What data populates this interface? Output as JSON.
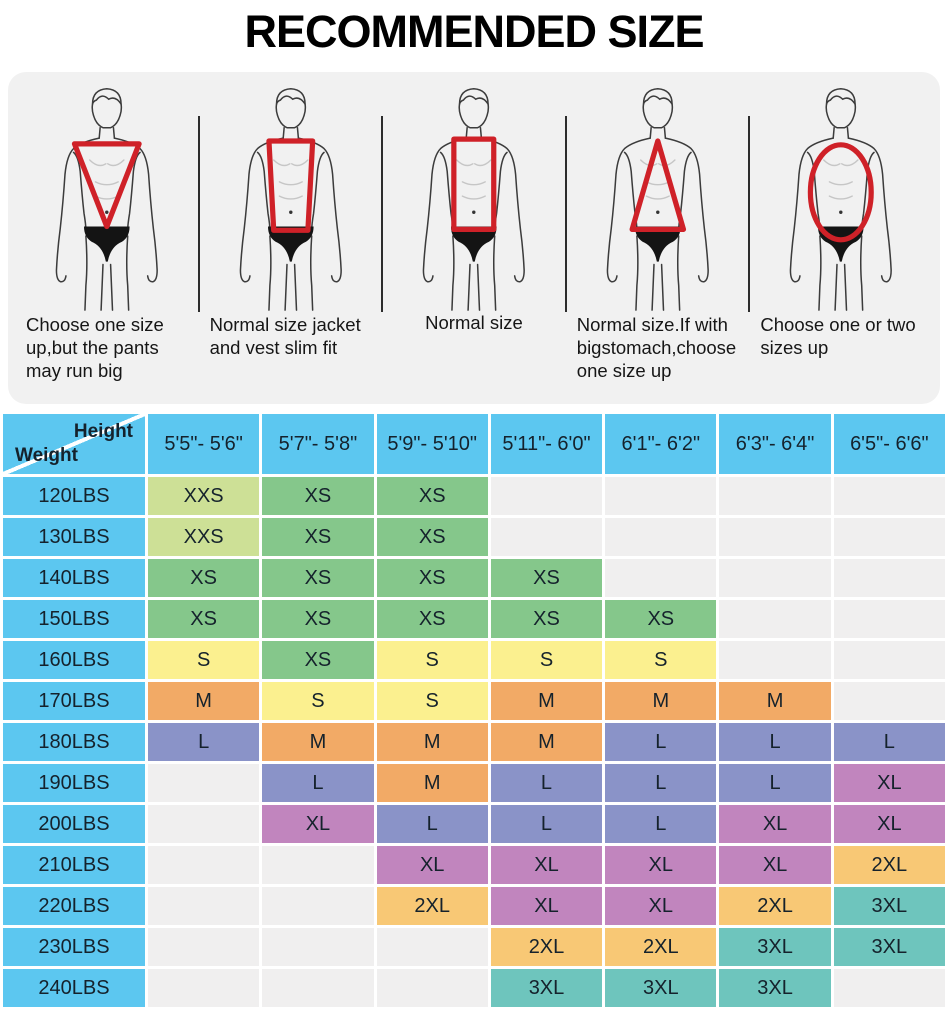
{
  "chart_data": {
    "type": "table",
    "title": "RECOMMENDED SIZE",
    "col_header": "Height",
    "row_header": "Weight",
    "columns": [
      "5'5\"- 5'6\"",
      "5'7\"- 5'8\"",
      "5'9\"- 5'10\"",
      "5'11\"- 6'0\"",
      "6'1\"- 6'2\"",
      "6'3\"- 6'4\"",
      "6'5\"- 6'6\""
    ],
    "rows": [
      {
        "weight": "120LBS",
        "sizes": [
          "XXS",
          "XS",
          "XS",
          "",
          "",
          "",
          ""
        ]
      },
      {
        "weight": "130LBS",
        "sizes": [
          "XXS",
          "XS",
          "XS",
          "",
          "",
          "",
          ""
        ]
      },
      {
        "weight": "140LBS",
        "sizes": [
          "XS",
          "XS",
          "XS",
          "XS",
          "",
          "",
          ""
        ]
      },
      {
        "weight": "150LBS",
        "sizes": [
          "XS",
          "XS",
          "XS",
          "XS",
          "XS",
          "",
          ""
        ]
      },
      {
        "weight": "160LBS",
        "sizes": [
          "S",
          "XS",
          "S",
          "S",
          "S",
          "",
          ""
        ]
      },
      {
        "weight": "170LBS",
        "sizes": [
          "M",
          "S",
          "S",
          "M",
          "M",
          "M",
          ""
        ]
      },
      {
        "weight": "180LBS",
        "sizes": [
          "L",
          "M",
          "M",
          "M",
          "L",
          "L",
          "L"
        ]
      },
      {
        "weight": "190LBS",
        "sizes": [
          "",
          "L",
          "M",
          "L",
          "L",
          "L",
          "XL"
        ]
      },
      {
        "weight": "200LBS",
        "sizes": [
          "",
          "XL",
          "L",
          "L",
          "L",
          "XL",
          "XL"
        ]
      },
      {
        "weight": "210LBS",
        "sizes": [
          "",
          "",
          "XL",
          "XL",
          "XL",
          "XL",
          "2XL"
        ]
      },
      {
        "weight": "220LBS",
        "sizes": [
          "",
          "",
          "2XL",
          "XL",
          "XL",
          "2XL",
          "3XL"
        ]
      },
      {
        "weight": "230LBS",
        "sizes": [
          "",
          "",
          "",
          "2XL",
          "2XL",
          "3XL",
          "3XL"
        ]
      },
      {
        "weight": "240LBS",
        "sizes": [
          "",
          "",
          "",
          "3XL",
          "3XL",
          "3XL",
          ""
        ]
      }
    ]
  },
  "body_types": {
    "figures": [
      {
        "shape": "inverted-triangle",
        "caption": "Choose one size up,but the pants may run big"
      },
      {
        "shape": "trapezoid",
        "caption": "Normal size jacket and vest slim fit"
      },
      {
        "shape": "rectangle",
        "caption": "Normal size"
      },
      {
        "shape": "triangle",
        "caption": "Normal size.If with bigstomach,choose one size up"
      },
      {
        "shape": "oval",
        "caption": "Choose one or two sizes up"
      }
    ]
  },
  "colors": {
    "header_blue": "#5cc7f0",
    "empty_cell": "#f0efef",
    "panel_bg": "#f1f1f1",
    "accent_red": "#cf2128",
    "text_dark": "#15222c",
    "size_colors": {
      "XXS": "#cde096",
      "XS": "#85c78b",
      "S": "#fbf08f",
      "M": "#f2aa66",
      "L": "#8a93c8",
      "XL": "#c185be",
      "2XL": "#f8c875",
      "3XL": "#6ec5bd"
    }
  }
}
